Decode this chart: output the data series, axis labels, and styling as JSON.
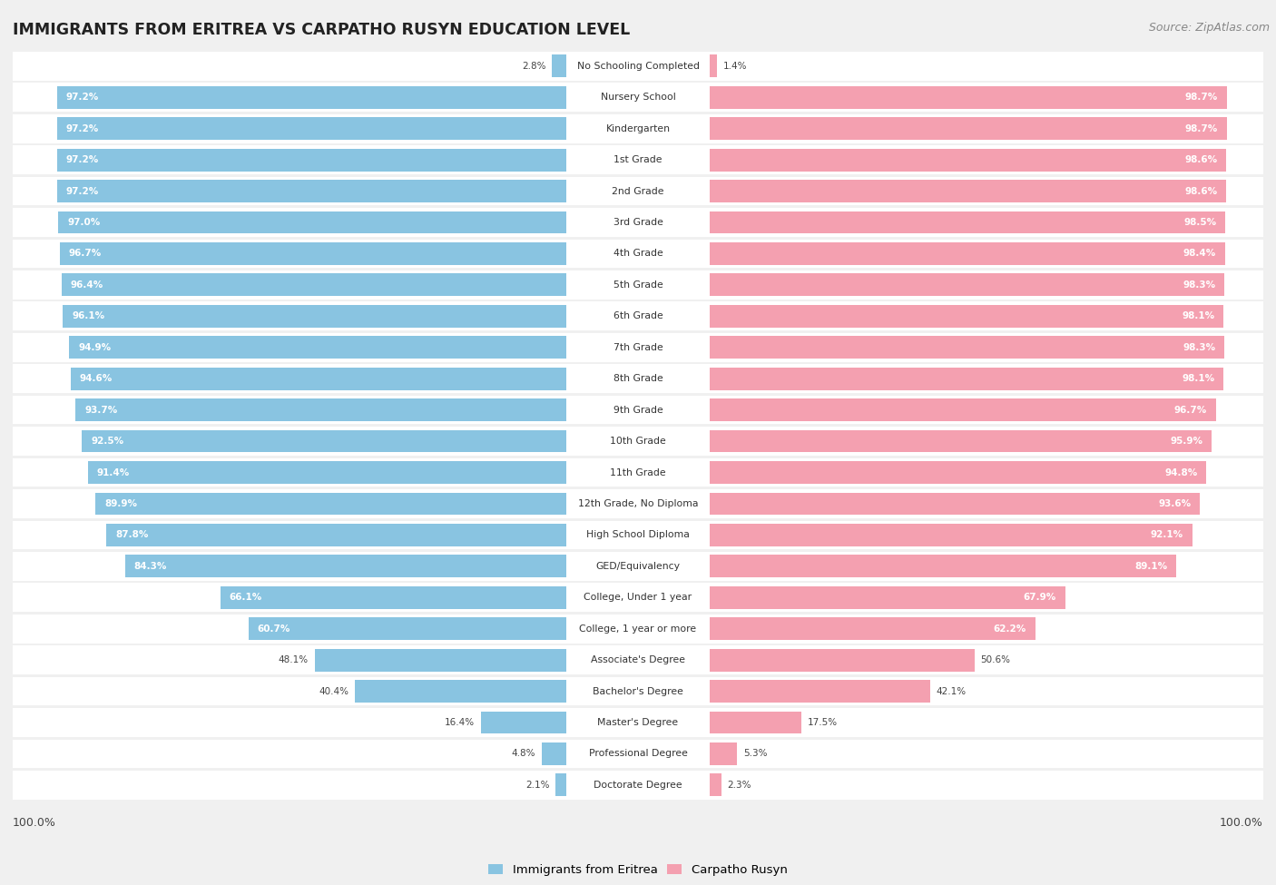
{
  "title": "IMMIGRANTS FROM ERITREA VS CARPATHO RUSYN EDUCATION LEVEL",
  "source": "Source: ZipAtlas.com",
  "legend_left": "Immigrants from Eritrea",
  "legend_right": "Carpatho Rusyn",
  "color_left": "#89C4E1",
  "color_right": "#F4A0B0",
  "background_color": "#f0f0f0",
  "bar_background": "#ffffff",
  "row_alt_color": "#f8f8f8",
  "categories": [
    "No Schooling Completed",
    "Nursery School",
    "Kindergarten",
    "1st Grade",
    "2nd Grade",
    "3rd Grade",
    "4th Grade",
    "5th Grade",
    "6th Grade",
    "7th Grade",
    "8th Grade",
    "9th Grade",
    "10th Grade",
    "11th Grade",
    "12th Grade, No Diploma",
    "High School Diploma",
    "GED/Equivalency",
    "College, Under 1 year",
    "College, 1 year or more",
    "Associate's Degree",
    "Bachelor's Degree",
    "Master's Degree",
    "Professional Degree",
    "Doctorate Degree"
  ],
  "values_left": [
    2.8,
    97.2,
    97.2,
    97.2,
    97.2,
    97.0,
    96.7,
    96.4,
    96.1,
    94.9,
    94.6,
    93.7,
    92.5,
    91.4,
    89.9,
    87.8,
    84.3,
    66.1,
    60.7,
    48.1,
    40.4,
    16.4,
    4.8,
    2.1
  ],
  "values_right": [
    1.4,
    98.7,
    98.7,
    98.6,
    98.6,
    98.5,
    98.4,
    98.3,
    98.1,
    98.3,
    98.1,
    96.7,
    95.9,
    94.8,
    93.6,
    92.1,
    89.1,
    67.9,
    62.2,
    50.6,
    42.1,
    17.5,
    5.3,
    2.3
  ]
}
